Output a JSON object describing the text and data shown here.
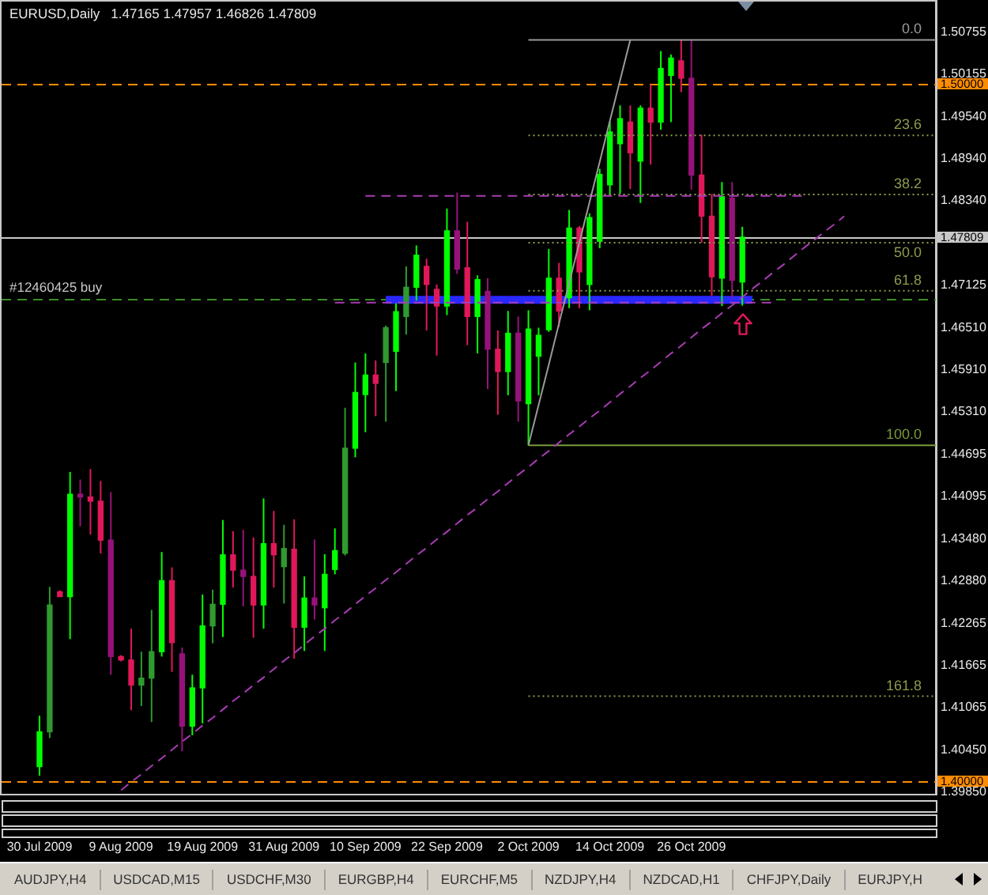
{
  "chart_data": {
    "type": "candlestick",
    "title": "EURUSD,Daily",
    "subtitle": "1.47165 1.47957 1.46826 1.47809",
    "categories": [
      "30 Jul 2009",
      null,
      null,
      null,
      null,
      null,
      null,
      null,
      "9 Aug 2009",
      null,
      null,
      null,
      null,
      null,
      null,
      null,
      "19 Aug 2009",
      null,
      null,
      null,
      null,
      null,
      null,
      null,
      "31 Aug 2009",
      null,
      null,
      null,
      null,
      null,
      null,
      null,
      "10 Sep 2009",
      null,
      null,
      null,
      null,
      null,
      null,
      null,
      "22 Sep 2009",
      null,
      null,
      null,
      null,
      null,
      null,
      null,
      "2 Oct 2009",
      null,
      null,
      null,
      null,
      null,
      null,
      null,
      "14 Oct 2009",
      null,
      null,
      null,
      null,
      null,
      null,
      null,
      "26 Oct 2009",
      null,
      null,
      null,
      null,
      null,
      null,
      null,
      null,
      null,
      null,
      null,
      null,
      null,
      null,
      null,
      null,
      null,
      null,
      null,
      null,
      null,
      null,
      null,
      null
    ],
    "ohlc": [
      [
        1.4021,
        1.4094,
        1.4008,
        1.4071
      ],
      [
        1.4071,
        1.4279,
        1.4062,
        1.4253
      ],
      [
        1.4272,
        1.4274,
        1.4265,
        1.4265
      ],
      [
        1.4265,
        1.4444,
        1.4204,
        1.4412
      ],
      [
        1.4412,
        1.4433,
        1.4366,
        1.4408
      ],
      [
        1.4408,
        1.4448,
        1.4354,
        1.4402
      ],
      [
        1.4402,
        1.4431,
        1.4327,
        1.4346
      ],
      [
        1.4346,
        1.4415,
        1.4153,
        1.4179
      ],
      [
        1.4179,
        1.4181,
        1.4172,
        1.4174
      ],
      [
        1.4174,
        1.4219,
        1.4102,
        1.4138
      ],
      [
        1.4138,
        1.4186,
        1.4108,
        1.4148
      ],
      [
        1.4148,
        1.4246,
        1.4085,
        1.4186
      ],
      [
        1.4186,
        1.4329,
        1.4179,
        1.4288
      ],
      [
        1.4288,
        1.4307,
        1.4157,
        1.4199
      ],
      [
        1.4183,
        1.4192,
        1.4043,
        1.4079
      ],
      [
        1.4079,
        1.4153,
        1.4066,
        1.4134
      ],
      [
        1.4134,
        1.4268,
        1.4083,
        1.4223
      ],
      [
        1.4223,
        1.4275,
        1.4198,
        1.4254
      ],
      [
        1.4254,
        1.4375,
        1.4207,
        1.4325
      ],
      [
        1.4325,
        1.4359,
        1.4278,
        1.4303
      ],
      [
        1.4303,
        1.4361,
        1.4251,
        1.4294
      ],
      [
        1.4294,
        1.435,
        1.4206,
        1.4253
      ],
      [
        1.4253,
        1.4406,
        1.4219,
        1.4341
      ],
      [
        1.4341,
        1.4388,
        1.4278,
        1.4325
      ],
      [
        1.4308,
        1.4368,
        1.4255,
        1.4334
      ],
      [
        1.4333,
        1.4376,
        1.4176,
        1.4221
      ],
      [
        1.4221,
        1.4294,
        1.4187,
        1.4263
      ],
      [
        1.4263,
        1.4347,
        1.4232,
        1.4253
      ],
      [
        1.4249,
        1.4326,
        1.4187,
        1.4297
      ],
      [
        1.4304,
        1.4363,
        1.4297,
        1.4331
      ],
      [
        1.4327,
        1.4536,
        1.4324,
        1.4478
      ],
      [
        1.4478,
        1.4601,
        1.4465,
        1.4558
      ],
      [
        1.4555,
        1.4614,
        1.4501,
        1.4583
      ],
      [
        1.4583,
        1.4604,
        1.4524,
        1.4571
      ],
      [
        1.4601,
        1.4654,
        1.4516,
        1.4651
      ],
      [
        1.4617,
        1.4686,
        1.456,
        1.4674
      ],
      [
        1.4667,
        1.4739,
        1.4641,
        1.4709
      ],
      [
        1.4709,
        1.4769,
        1.469,
        1.4755
      ],
      [
        1.4739,
        1.475,
        1.4647,
        1.4713
      ],
      [
        1.4706,
        1.4713,
        1.4611,
        1.4682
      ],
      [
        1.4682,
        1.4822,
        1.4669,
        1.479
      ],
      [
        1.479,
        1.4845,
        1.4728,
        1.4735
      ],
      [
        1.4737,
        1.4803,
        1.4626,
        1.4667
      ],
      [
        1.4667,
        1.4726,
        1.4614,
        1.472
      ],
      [
        1.4703,
        1.4722,
        1.4563,
        1.462
      ],
      [
        1.462,
        1.4647,
        1.4526,
        1.4588
      ],
      [
        1.4588,
        1.4675,
        1.4554,
        1.4643
      ],
      [
        1.4643,
        1.4667,
        1.4516,
        1.4546
      ],
      [
        1.4542,
        1.4676,
        1.4482,
        1.4649
      ],
      [
        1.461,
        1.4651,
        1.4554,
        1.464
      ],
      [
        1.4648,
        1.4764,
        1.4645,
        1.4722
      ],
      [
        1.4722,
        1.4744,
        1.4652,
        1.4675
      ],
      [
        1.4694,
        1.482,
        1.4679,
        1.4794
      ],
      [
        1.4794,
        1.4797,
        1.4679,
        1.4731
      ],
      [
        1.4713,
        1.4815,
        1.4676,
        1.4809
      ],
      [
        1.4775,
        1.4879,
        1.4765,
        1.4871
      ],
      [
        1.4856,
        1.4947,
        1.484,
        1.4932
      ],
      [
        1.4915,
        1.497,
        1.4843,
        1.4951
      ],
      [
        1.4946,
        1.497,
        1.485,
        1.4902
      ],
      [
        1.489,
        1.497,
        1.483,
        1.4966
      ],
      [
        1.4966,
        1.5,
        1.4885,
        1.4946
      ],
      [
        1.4946,
        1.5048,
        1.4935,
        1.5023
      ],
      [
        1.5013,
        1.5043,
        1.4946,
        1.5038
      ],
      [
        1.5034,
        1.5064,
        1.4989,
        1.5009
      ],
      [
        1.5009,
        1.5064,
        1.4849,
        1.487
      ],
      [
        1.487,
        1.4928,
        1.4773,
        1.4811
      ],
      [
        1.4811,
        1.4843,
        1.4697,
        1.4724
      ],
      [
        1.4722,
        1.486,
        1.4682,
        1.4839
      ],
      [
        1.4837,
        1.486,
        1.4694,
        1.4719
      ],
      [
        1.47165,
        1.47957,
        1.46826,
        1.47809
      ],
      null,
      null,
      null,
      null,
      null,
      null,
      null,
      null,
      null,
      null,
      null,
      null,
      null,
      null,
      null,
      null,
      null,
      null,
      null
    ],
    "colors": [
      "#00ff00",
      "#2f9a2f",
      "#e0185a",
      "#00ff00",
      "#96127a",
      "#e0185a",
      "#e0185a",
      "#96127a",
      "#e0185a",
      "#e0185a",
      "#2f9a2f",
      "#2f9a2f",
      "#00ff00",
      "#e0185a",
      "#96127a",
      "#00ff00",
      "#00ff00",
      "#2f9a2f",
      "#00ff00",
      "#e0185a",
      "#96127a",
      "#e0185a",
      "#00ff00",
      "#e0185a",
      "#2f9a2f",
      "#e0185a",
      "#00ff00",
      "#96127a",
      "#00ff00",
      "#00ff00",
      "#2f9a2f",
      "#00ff00",
      "#00ff00",
      "#e0185a",
      "#2f9a2f",
      "#00ff00",
      "#2f9a2f",
      "#00ff00",
      "#e0185a",
      "#e0185a",
      "#00ff00",
      "#96127a",
      "#e0185a",
      "#00ff00",
      "#96127a",
      "#e0185a",
      "#00ff00",
      "#96127a",
      "#00ff00",
      "#00ff00",
      "#00ff00",
      "#e0185a",
      "#00ff00",
      "#e0185a",
      "#00ff00",
      "#00ff00",
      "#00ff00",
      "#00ff00",
      "#e0185a",
      "#00ff00",
      "#e0185a",
      "#00ff00",
      "#00ff00",
      "#e0185a",
      "#96127a",
      "#e0185a",
      "#e0185a",
      "#00ff00",
      "#96127a",
      "#00ff00",
      null,
      null,
      null,
      null,
      null,
      null,
      null,
      null,
      null,
      null,
      null,
      null,
      null,
      null,
      null,
      null,
      null,
      null,
      null
    ],
    "series": [
      {
        "type": "line",
        "color": "#9a9a9a",
        "values": [
          null,
          null,
          null,
          null,
          null,
          null,
          null,
          null,
          null,
          null,
          null,
          null,
          null,
          null,
          null,
          null,
          null,
          null,
          null,
          null,
          null,
          null,
          null,
          null,
          null,
          null,
          null,
          null,
          null,
          null,
          null,
          null,
          null,
          null,
          null,
          null,
          null,
          null,
          null,
          null,
          null,
          null,
          null,
          null,
          null,
          null,
          null,
          null,
          1.4482,
          1.454,
          1.4598,
          1.4657,
          1.4715,
          1.4773,
          1.4831,
          1.4889,
          1.4948,
          1.5006,
          1.5064,
          null,
          null,
          null,
          null,
          null,
          null,
          null,
          null,
          null,
          null,
          null,
          null,
          null,
          null,
          null,
          null,
          null,
          null,
          null,
          null,
          null,
          null,
          null,
          null,
          null,
          null,
          null,
          null,
          null,
          null
        ]
      },
      {
        "type": "line",
        "color": "#a83cb4",
        "line_style": "dashed",
        "values": [
          null,
          null,
          null,
          null,
          null,
          null,
          null,
          null,
          1.3987,
          1.3999,
          1.401,
          1.4022,
          1.4033,
          1.4045,
          1.4057,
          1.4068,
          1.408,
          1.4091,
          1.4103,
          1.4115,
          1.4126,
          1.4138,
          1.4149,
          1.4161,
          1.4173,
          1.4184,
          1.4196,
          1.4208,
          1.4219,
          1.4231,
          1.4242,
          1.4254,
          1.4266,
          1.4277,
          1.4289,
          1.43,
          1.4312,
          1.4324,
          1.4335,
          1.4347,
          1.4358,
          1.437,
          1.4382,
          1.4393,
          1.4405,
          1.4416,
          1.4428,
          1.444,
          1.4451,
          1.4463,
          1.4474,
          1.4486,
          1.4498,
          1.4509,
          1.4521,
          1.4532,
          1.4544,
          1.4556,
          1.4567,
          1.4579,
          1.459,
          1.4602,
          1.4614,
          1.4625,
          1.4637,
          1.4649,
          1.466,
          1.4672,
          1.4683,
          1.4695,
          1.4707,
          1.4718,
          1.473,
          1.4741,
          1.4753,
          1.4765,
          1.4776,
          1.4788,
          1.4799,
          1.4811,
          null,
          null,
          null,
          null,
          null,
          null,
          null,
          null,
          null
        ]
      },
      {
        "type": "line",
        "color": "#a83cb4",
        "line_style": "dashed",
        "values": [
          null,
          null,
          null,
          null,
          null,
          null,
          null,
          null,
          null,
          null,
          null,
          null,
          null,
          null,
          null,
          null,
          null,
          null,
          null,
          null,
          null,
          null,
          null,
          null,
          null,
          null,
          null,
          null,
          null,
          null,
          null,
          null,
          1.484,
          1.484,
          1.484,
          1.484,
          1.484,
          1.484,
          1.484,
          1.484,
          1.484,
          1.484,
          1.484,
          1.484,
          1.484,
          1.484,
          1.484,
          1.484,
          1.484,
          1.484,
          1.484,
          1.484,
          1.484,
          1.484,
          1.484,
          1.484,
          1.484,
          1.484,
          1.484,
          1.484,
          1.484,
          1.484,
          1.484,
          1.484,
          1.484,
          1.484,
          1.484,
          1.484,
          1.484,
          1.484,
          1.484,
          1.484,
          1.484,
          1.484,
          1.484,
          1.484,
          null,
          null,
          null,
          null,
          null,
          null,
          null,
          null,
          null,
          null,
          null,
          null,
          null
        ]
      },
      {
        "type": "line",
        "color": "#a83cb4",
        "line_style": "dashed",
        "values": [
          null,
          null,
          null,
          null,
          null,
          null,
          null,
          null,
          null,
          null,
          null,
          null,
          null,
          null,
          null,
          null,
          null,
          null,
          null,
          null,
          null,
          null,
          null,
          null,
          null,
          null,
          null,
          null,
          null,
          1.4687,
          1.4687,
          1.4687,
          1.4687,
          1.4687,
          1.4687,
          1.4687,
          1.4687,
          1.4687,
          1.4687,
          1.4687,
          1.4687,
          1.4687,
          1.4687,
          1.4687,
          1.4687,
          1.4687,
          1.4687,
          1.4687,
          1.4687,
          1.4687,
          1.4687,
          1.4687,
          1.4687,
          1.4687,
          1.4687,
          1.4687,
          1.4687,
          1.4687,
          1.4687,
          1.4687,
          1.4687,
          1.4687,
          1.4687,
          1.4687,
          1.4687,
          1.4687,
          1.4687,
          1.4687,
          1.4687,
          1.4687,
          1.4687,
          1.4687,
          1.4687,
          null,
          null,
          null,
          null,
          null,
          null,
          null,
          null,
          null,
          null,
          null,
          null,
          null,
          null,
          null,
          null
        ]
      },
      {
        "type": "line",
        "name": "0.0",
        "color": "#9a9a9a",
        "values": [
          null,
          null,
          null,
          null,
          null,
          null,
          null,
          null,
          null,
          null,
          null,
          null,
          null,
          null,
          null,
          null,
          null,
          null,
          null,
          null,
          null,
          null,
          null,
          null,
          null,
          null,
          null,
          null,
          null,
          null,
          null,
          null,
          null,
          null,
          null,
          null,
          null,
          null,
          null,
          null,
          null,
          null,
          null,
          null,
          null,
          null,
          null,
          null,
          1.5064,
          1.5064,
          1.5064,
          1.5064,
          1.5064,
          1.5064,
          1.5064,
          1.5064,
          1.5064,
          1.5064,
          1.5064,
          1.5064,
          1.5064,
          1.5064,
          1.5064,
          1.5064,
          1.5064,
          1.5064,
          1.5064,
          1.5064,
          1.5064,
          1.5064,
          1.5064,
          1.5064,
          1.5064,
          1.5064,
          1.5064,
          1.5064,
          1.5064,
          1.5064,
          1.5064,
          1.5064,
          1.5064,
          1.5064,
          1.5064,
          1.5064,
          1.5064,
          1.5064,
          1.5064,
          1.5064,
          1.5064
        ]
      },
      {
        "type": "line",
        "name": "23.6",
        "color": "#8c9c4c",
        "line_style": "dotted",
        "values": [
          null,
          null,
          null,
          null,
          null,
          null,
          null,
          null,
          null,
          null,
          null,
          null,
          null,
          null,
          null,
          null,
          null,
          null,
          null,
          null,
          null,
          null,
          null,
          null,
          null,
          null,
          null,
          null,
          null,
          null,
          null,
          null,
          null,
          null,
          null,
          null,
          null,
          null,
          null,
          null,
          null,
          null,
          null,
          null,
          null,
          null,
          null,
          null,
          1.4927,
          1.4927,
          1.4927,
          1.4927,
          1.4927,
          1.4927,
          1.4927,
          1.4927,
          1.4927,
          1.4927,
          1.4927,
          1.4927,
          1.4927,
          1.4927,
          1.4927,
          1.4927,
          1.4927,
          1.4927,
          1.4927,
          1.4927,
          1.4927,
          1.4927,
          1.4927,
          1.4927,
          1.4927,
          1.4927,
          1.4927,
          1.4927,
          1.4927,
          1.4927,
          1.4927,
          1.4927,
          1.4927,
          1.4927,
          1.4927,
          1.4927,
          1.4927,
          1.4927,
          1.4927,
          1.4927,
          1.4927
        ]
      },
      {
        "type": "line",
        "name": "38.2",
        "color": "#8c9c4c",
        "line_style": "dotted",
        "values": [
          null,
          null,
          null,
          null,
          null,
          null,
          null,
          null,
          null,
          null,
          null,
          null,
          null,
          null,
          null,
          null,
          null,
          null,
          null,
          null,
          null,
          null,
          null,
          null,
          null,
          null,
          null,
          null,
          null,
          null,
          null,
          null,
          null,
          null,
          null,
          null,
          null,
          null,
          null,
          null,
          null,
          null,
          null,
          null,
          null,
          null,
          null,
          null,
          1.4842,
          1.4842,
          1.4842,
          1.4842,
          1.4842,
          1.4842,
          1.4842,
          1.4842,
          1.4842,
          1.4842,
          1.4842,
          1.4842,
          1.4842,
          1.4842,
          1.4842,
          1.4842,
          1.4842,
          1.4842,
          1.4842,
          1.4842,
          1.4842,
          1.4842,
          1.4842,
          1.4842,
          1.4842,
          1.4842,
          1.4842,
          1.4842,
          1.4842,
          1.4842,
          1.4842,
          1.4842,
          1.4842,
          1.4842,
          1.4842,
          1.4842,
          1.4842,
          1.4842,
          1.4842,
          1.4842,
          1.4842
        ]
      },
      {
        "type": "line",
        "name": "50.0",
        "color": "#8c9c4c",
        "line_style": "dotted",
        "values": [
          null,
          null,
          null,
          null,
          null,
          null,
          null,
          null,
          null,
          null,
          null,
          null,
          null,
          null,
          null,
          null,
          null,
          null,
          null,
          null,
          null,
          null,
          null,
          null,
          null,
          null,
          null,
          null,
          null,
          null,
          null,
          null,
          null,
          null,
          null,
          null,
          null,
          null,
          null,
          null,
          null,
          null,
          null,
          null,
          null,
          null,
          null,
          null,
          1.4773,
          1.4773,
          1.4773,
          1.4773,
          1.4773,
          1.4773,
          1.4773,
          1.4773,
          1.4773,
          1.4773,
          1.4773,
          1.4773,
          1.4773,
          1.4773,
          1.4773,
          1.4773,
          1.4773,
          1.4773,
          1.4773,
          1.4773,
          1.4773,
          1.4773,
          1.4773,
          1.4773,
          1.4773,
          1.4773,
          1.4773,
          1.4773,
          1.4773,
          1.4773,
          1.4773,
          1.4773,
          1.4773,
          1.4773,
          1.4773,
          1.4773,
          1.4773,
          1.4773,
          1.4773,
          1.4773,
          1.4773
        ]
      },
      {
        "type": "line",
        "name": "61.8",
        "color": "#8c9c4c",
        "line_style": "dotted",
        "values": [
          null,
          null,
          null,
          null,
          null,
          null,
          null,
          null,
          null,
          null,
          null,
          null,
          null,
          null,
          null,
          null,
          null,
          null,
          null,
          null,
          null,
          null,
          null,
          null,
          null,
          null,
          null,
          null,
          null,
          null,
          null,
          null,
          null,
          null,
          null,
          null,
          null,
          null,
          null,
          null,
          null,
          null,
          null,
          null,
          null,
          null,
          null,
          null,
          1.4704,
          1.4704,
          1.4704,
          1.4704,
          1.4704,
          1.4704,
          1.4704,
          1.4704,
          1.4704,
          1.4704,
          1.4704,
          1.4704,
          1.4704,
          1.4704,
          1.4704,
          1.4704,
          1.4704,
          1.4704,
          1.4704,
          1.4704,
          1.4704,
          1.4704,
          1.4704,
          1.4704,
          1.4704,
          1.4704,
          1.4704,
          1.4704,
          1.4704,
          1.4704,
          1.4704,
          1.4704,
          1.4704,
          1.4704,
          1.4704,
          1.4704,
          1.4704,
          1.4704,
          1.4704,
          1.4704,
          1.4704
        ]
      },
      {
        "type": "line",
        "name": "100.0",
        "color": "#7a9a3a",
        "values": [
          null,
          null,
          null,
          null,
          null,
          null,
          null,
          null,
          null,
          null,
          null,
          null,
          null,
          null,
          null,
          null,
          null,
          null,
          null,
          null,
          null,
          null,
          null,
          null,
          null,
          null,
          null,
          null,
          null,
          null,
          null,
          null,
          null,
          null,
          null,
          null,
          null,
          null,
          null,
          null,
          null,
          null,
          null,
          null,
          null,
          null,
          null,
          null,
          1.4482,
          1.4482,
          1.4482,
          1.4482,
          1.4482,
          1.4482,
          1.4482,
          1.4482,
          1.4482,
          1.4482,
          1.4482,
          1.4482,
          1.4482,
          1.4482,
          1.4482,
          1.4482,
          1.4482,
          1.4482,
          1.4482,
          1.4482,
          1.4482,
          1.4482,
          1.4482,
          1.4482,
          1.4482,
          1.4482,
          1.4482,
          1.4482,
          1.4482,
          1.4482,
          1.4482,
          1.4482,
          1.4482,
          1.4482,
          1.4482,
          1.4482,
          1.4482,
          1.4482,
          1.4482,
          1.4482,
          1.4482
        ]
      },
      {
        "type": "line",
        "name": "161.8",
        "color": "#8c9c4c",
        "line_style": "dotted",
        "values": [
          null,
          null,
          null,
          null,
          null,
          null,
          null,
          null,
          null,
          null,
          null,
          null,
          null,
          null,
          null,
          null,
          null,
          null,
          null,
          null,
          null,
          null,
          null,
          null,
          null,
          null,
          null,
          null,
          null,
          null,
          null,
          null,
          null,
          null,
          null,
          null,
          null,
          null,
          null,
          null,
          null,
          null,
          null,
          null,
          null,
          null,
          null,
          null,
          1.4122,
          1.4122,
          1.4122,
          1.4122,
          1.4122,
          1.4122,
          1.4122,
          1.4122,
          1.4122,
          1.4122,
          1.4122,
          1.4122,
          1.4122,
          1.4122,
          1.4122,
          1.4122,
          1.4122,
          1.4122,
          1.4122,
          1.4122,
          1.4122,
          1.4122,
          1.4122,
          1.4122,
          1.4122,
          1.4122,
          1.4122,
          1.4122,
          1.4122,
          1.4122,
          1.4122,
          1.4122,
          1.4122,
          1.4122,
          1.4122,
          1.4122,
          1.4122,
          1.4122,
          1.4122,
          1.4122,
          1.4122
        ]
      },
      {
        "type": "line",
        "color": "#2828ff",
        "values": [
          null,
          null,
          null,
          null,
          null,
          null,
          null,
          null,
          null,
          null,
          null,
          null,
          null,
          null,
          null,
          null,
          null,
          null,
          null,
          null,
          null,
          null,
          null,
          null,
          null,
          null,
          null,
          null,
          null,
          null,
          null,
          null,
          null,
          null,
          1.4691,
          1.4691,
          1.4691,
          1.4691,
          1.4691,
          1.4691,
          1.4691,
          1.4691,
          1.4691,
          1.4691,
          1.4691,
          1.4691,
          1.4691,
          1.4691,
          1.4691,
          1.4691,
          1.4691,
          1.4691,
          1.4691,
          1.4691,
          1.4691,
          1.4691,
          1.4691,
          1.4691,
          1.4691,
          1.4691,
          1.4691,
          1.4691,
          1.4691,
          1.4691,
          1.4691,
          1.4691,
          1.4691,
          1.4691,
          1.4691,
          1.4691,
          1.4691,
          null,
          null,
          null,
          null,
          null,
          null,
          null,
          null,
          null,
          null,
          null,
          null,
          null,
          null,
          null,
          null,
          null,
          null
        ]
      }
    ],
    "ylim": [
      1.3982,
      1.5119
    ],
    "yticks": [
      1.50755,
      1.50155,
      {
        "value": 1.4954,
        "label": "1.49540"
      },
      {
        "value": 1.4894,
        "label": "1.48940"
      },
      {
        "value": 1.4834,
        "label": "1.48340"
      },
      1.47125,
      {
        "value": 1.4651,
        "label": "1.46510"
      },
      {
        "value": 1.4591,
        "label": "1.45910"
      },
      {
        "value": 1.4531,
        "label": "1.45310"
      },
      1.44695,
      1.44095,
      {
        "value": 1.4348,
        "label": "1.43480"
      },
      {
        "value": 1.4288,
        "label": "1.42880"
      },
      1.42265,
      1.41665,
      1.41065,
      {
        "value": 1.4045,
        "label": "1.40450"
      },
      {
        "value": 1.3985,
        "label": "1.39850"
      }
    ],
    "ref_lines": [
      {
        "axis": "y",
        "value": 1.5,
        "label": "1.50000",
        "color": "#ff8c00",
        "line_style": "dashed"
      },
      {
        "axis": "y",
        "value": 1.4,
        "label": "1.40000",
        "color": "#ff8c00",
        "line_style": "dashed"
      },
      {
        "axis": "y",
        "value": 1.47809,
        "label": "1.47809",
        "color": "#c8c8c8"
      },
      {
        "axis": "y",
        "value": 1.4692,
        "label": "#12460425 buy",
        "color": "#3c8c28",
        "line_style": "dashed"
      }
    ],
    "annotations": [
      "AUDJPY,H4",
      "USDCAD,M15",
      "USDCHF,M30",
      "EURGBP,H4",
      "EURCHF,M5",
      "NZDJPY,H4",
      "NZDCAD,H1",
      "CHFJPY,Daily",
      "EURJPY,H"
    ]
  }
}
